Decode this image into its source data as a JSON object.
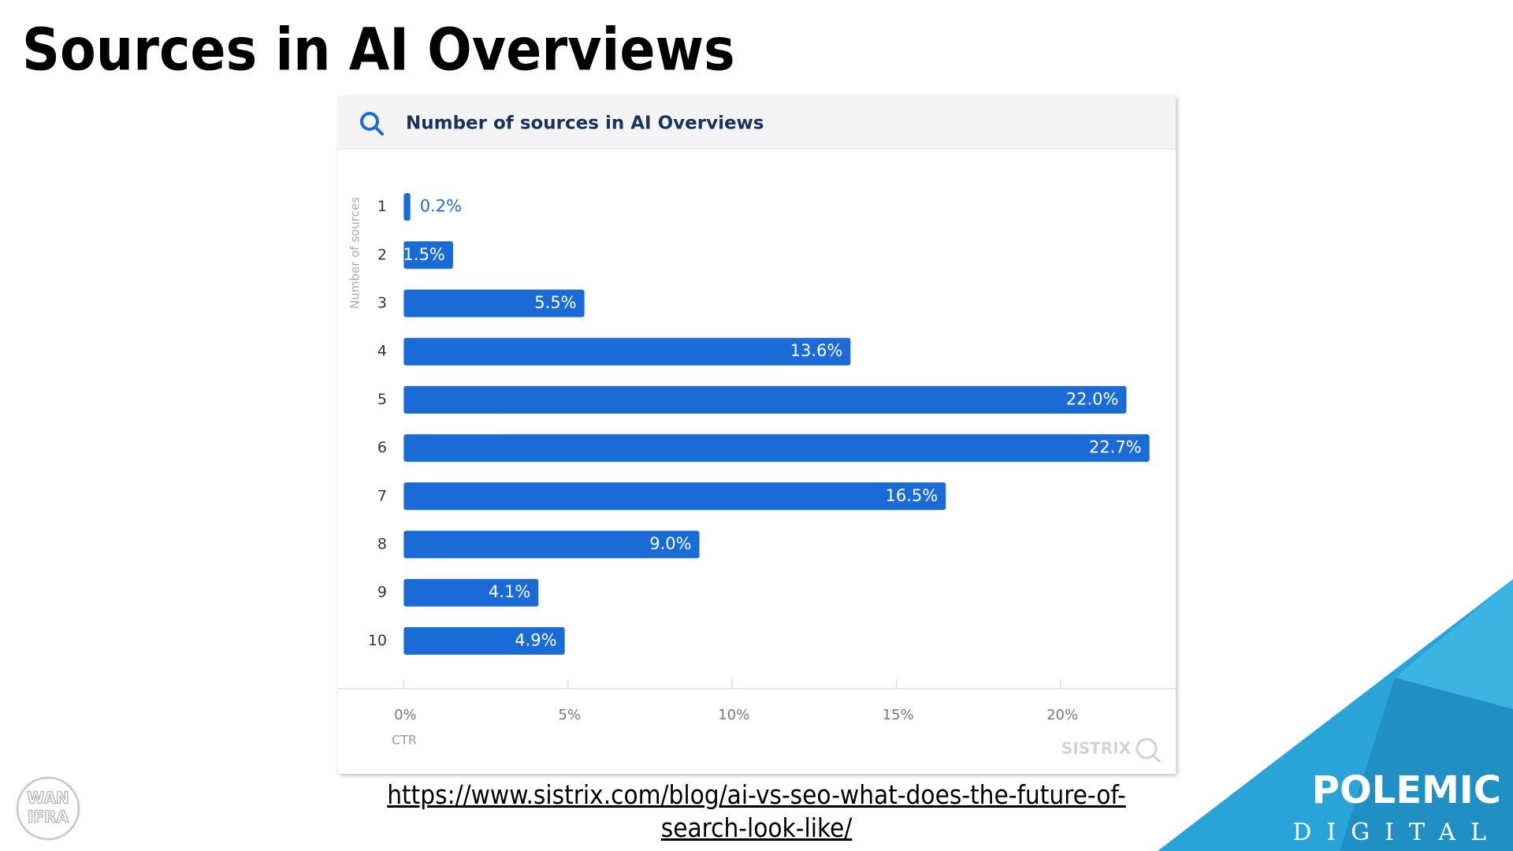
{
  "title": "Sources in AI Overviews",
  "chart_data": {
    "type": "bar",
    "orientation": "horizontal",
    "title": "Number of sources in AI Overviews",
    "y_label": "Number of sources",
    "x_label": "CTR",
    "categories": [
      "1",
      "2",
      "3",
      "4",
      "5",
      "6",
      "7",
      "8",
      "9",
      "10"
    ],
    "values": [
      0.2,
      1.5,
      5.5,
      13.6,
      22.0,
      22.7,
      16.5,
      9.0,
      4.1,
      4.9
    ],
    "value_labels": [
      "0.2%",
      "1.5%",
      "5.5%",
      "13.6%",
      "22.0%",
      "22.7%",
      "16.5%",
      "9.0%",
      "4.1%",
      "4.9%"
    ],
    "color": "#1a6bd6",
    "xlim": [
      -2,
      23.5
    ],
    "xticks": [
      {
        "value": 0,
        "label": "0%"
      },
      {
        "value": 5,
        "label": "5%"
      },
      {
        "value": 10,
        "label": "10%"
      },
      {
        "value": 15,
        "label": "15%"
      },
      {
        "value": 20,
        "label": "20%"
      }
    ],
    "watermark": "SISTRIX"
  },
  "link": "https://www.sistrix.com/blog/ai-vs-seo-what-does-the-future-of-search-look-like/",
  "badge": [
    "WAN",
    "IFRA"
  ],
  "logo": {
    "name": "POLEMIC",
    "tagline": "DIGITAL"
  }
}
